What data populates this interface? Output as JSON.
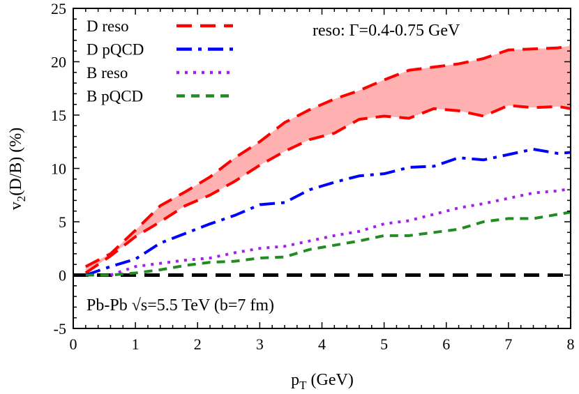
{
  "chart_data": {
    "type": "line",
    "xlabel": {
      "main": "p",
      "sub": "T",
      "rest": " (GeV)"
    },
    "ylabel": {
      "main": "v",
      "sub": "2",
      "rest": "(D/B) (%)"
    },
    "xlim": [
      0,
      8
    ],
    "ylim": [
      -5,
      25
    ],
    "xticks": [
      "0",
      "1",
      "2",
      "3",
      "4",
      "5",
      "6",
      "7",
      "8"
    ],
    "yticks": [
      "-5",
      "0",
      "5",
      "10",
      "15",
      "20",
      "25"
    ],
    "grid": false,
    "legend_position": "top-left",
    "annotations": {
      "collision": "Pb-Pb √s=5.5 TeV (b=7 fm)",
      "width": "reso: Γ=0.4-0.75 GeV"
    },
    "x": [
      0.2,
      0.6,
      1.0,
      1.4,
      1.8,
      2.2,
      2.6,
      3.0,
      3.4,
      3.8,
      4.2,
      4.6,
      5.0,
      5.4,
      5.8,
      6.2,
      6.6,
      7.0,
      7.4,
      7.8,
      8.0
    ],
    "band": {
      "name": "D reso",
      "color": "#ff0000",
      "fill": "#ffb0b0",
      "upper": [
        0.8,
        2.0,
        4.2,
        6.5,
        7.8,
        9.2,
        11.0,
        12.5,
        14.3,
        15.5,
        16.5,
        17.3,
        18.3,
        19.2,
        19.5,
        19.8,
        20.3,
        21.1,
        21.2,
        21.3,
        21.5
      ],
      "lower": [
        0.2,
        1.8,
        3.6,
        5.0,
        6.5,
        7.5,
        8.8,
        10.3,
        11.6,
        12.7,
        13.3,
        14.6,
        14.9,
        14.7,
        15.6,
        15.4,
        14.9,
        15.9,
        15.7,
        15.8,
        15.6
      ]
    },
    "series": [
      {
        "name": "D pQCD",
        "color": "#0000ff",
        "dash": "dashdot",
        "values": [
          0.0,
          0.8,
          1.5,
          3.0,
          3.9,
          4.8,
          5.6,
          6.6,
          6.8,
          8.0,
          8.7,
          9.3,
          9.5,
          10.1,
          10.2,
          11.0,
          10.8,
          11.3,
          11.8,
          11.4,
          11.5
        ]
      },
      {
        "name": "B reso",
        "color": "#a020f0",
        "dash": "dot",
        "values": [
          null,
          0.0,
          0.8,
          1.1,
          1.4,
          1.6,
          2.1,
          2.5,
          2.7,
          3.2,
          3.7,
          4.1,
          4.8,
          5.1,
          5.7,
          6.3,
          6.7,
          7.2,
          7.7,
          7.9,
          8.1
        ]
      },
      {
        "name": "B pQCD",
        "color": "#228b22",
        "dash": "shortdash",
        "values": [
          0.0,
          0.0,
          0.2,
          0.5,
          0.9,
          1.2,
          1.3,
          1.6,
          1.7,
          2.4,
          2.8,
          3.2,
          3.7,
          3.7,
          4.0,
          4.3,
          5.0,
          5.3,
          5.3,
          5.7,
          5.9
        ]
      }
    ],
    "reference_line": {
      "y": 0,
      "color": "#000000"
    }
  }
}
